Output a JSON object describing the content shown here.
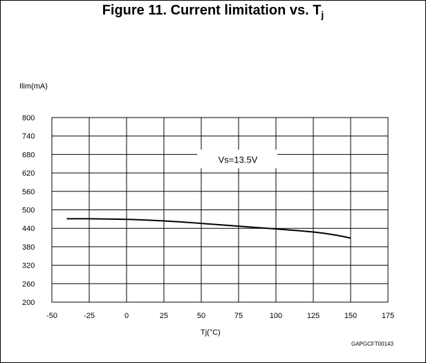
{
  "chart_data": {
    "type": "line",
    "title": "Figure 11. Current limitation vs. T",
    "title_subscript": "j",
    "ylabel": "Ilim(mA)",
    "xlabel": "Tj(°C)",
    "xlim": [
      -50,
      175
    ],
    "ylim": [
      200,
      800
    ],
    "x_ticks": [
      -50,
      -25,
      0,
      25,
      50,
      75,
      100,
      125,
      150,
      175
    ],
    "y_ticks": [
      200,
      260,
      320,
      380,
      440,
      500,
      560,
      620,
      680,
      740,
      800
    ],
    "grid": true,
    "annotation": "Vs=13.5V",
    "annotation_x": 75,
    "annotation_y": 662,
    "figure_code": "GAPGCFT00143",
    "series": [
      {
        "x": [
          -40,
          -25,
          0,
          25,
          50,
          75,
          100,
          125,
          140,
          150
        ],
        "values": [
          471,
          471,
          469,
          464,
          456,
          447,
          438,
          428,
          418,
          408
        ]
      }
    ]
  }
}
